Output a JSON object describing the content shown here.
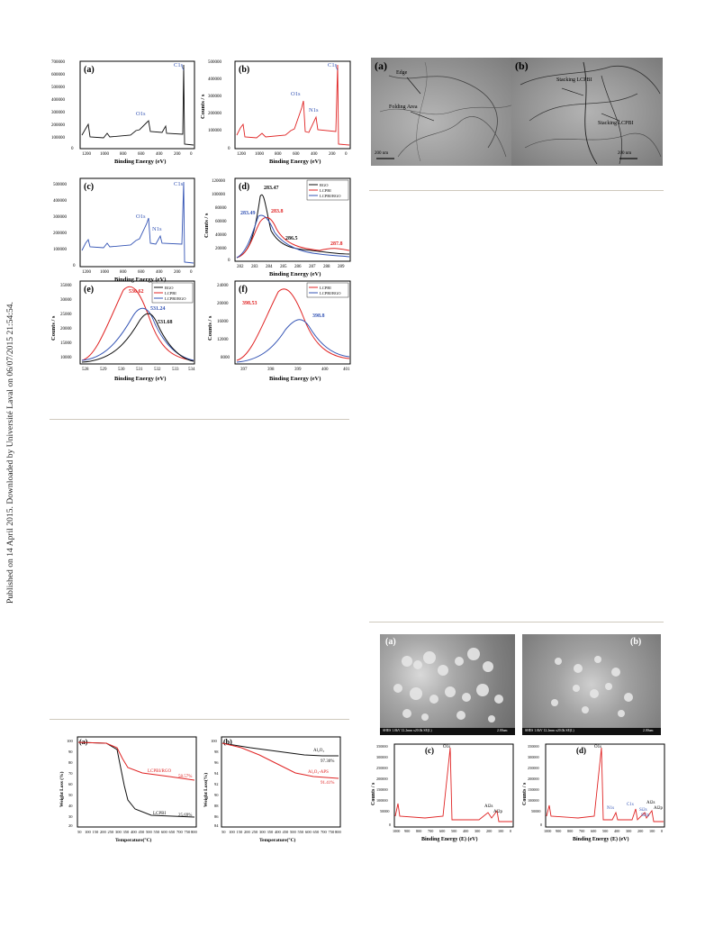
{
  "side_note": "Published on 14 April 2015. Downloaded by Université Laval on 06/07/2015 21:54:54.",
  "xps": {
    "xlabel": "Binding Energy (eV)",
    "ylabel": "Counts / s",
    "panels": {
      "a": {
        "label": "(a)",
        "peaks": [
          "C1s",
          "O1s"
        ],
        "yticks": [
          "700000",
          "600000",
          "500000",
          "400000",
          "300000",
          "200000",
          "100000",
          "0"
        ],
        "xticks": [
          "1200",
          "1000",
          "800",
          "600",
          "400",
          "200",
          "0"
        ]
      },
      "b": {
        "label": "(b)",
        "peaks": [
          "C1s",
          "O1s",
          "N1s"
        ],
        "yticks": [
          "500000",
          "400000",
          "300000",
          "200000",
          "100000",
          "0"
        ],
        "xticks": [
          "1200",
          "1000",
          "800",
          "600",
          "400",
          "200",
          "0"
        ]
      },
      "c": {
        "label": "(c)",
        "peaks": [
          "C1s",
          "O1s",
          "N1s"
        ],
        "yticks": [
          "500000",
          "400000",
          "300000",
          "200000",
          "100000",
          "0"
        ],
        "xticks": [
          "1200",
          "1000",
          "800",
          "600",
          "400",
          "200",
          "0"
        ]
      },
      "d": {
        "label": "(d)",
        "legend": [
          "RGO",
          "LCPBI",
          "LCPBI/RGO"
        ],
        "annotations": [
          "283.47",
          "283.49",
          "283.8",
          "286.5",
          "287.8"
        ],
        "yticks": [
          "120000",
          "100000",
          "80000",
          "60000",
          "40000",
          "20000",
          "0"
        ],
        "xticks": [
          "282",
          "283",
          "284",
          "285",
          "286",
          "287",
          "288",
          "289"
        ]
      },
      "e": {
        "label": "(e)",
        "legend": [
          "RGO",
          "LCPBI",
          "LCPBI/RGO"
        ],
        "annotations": [
          "530.62",
          "531.24",
          "531.68"
        ],
        "yticks": [
          "35000",
          "30000",
          "25000",
          "20000",
          "15000",
          "10000"
        ],
        "xticks": [
          "528",
          "529",
          "530",
          "531",
          "532",
          "533",
          "534"
        ]
      },
      "f": {
        "label": "(f)",
        "legend": [
          "LCPBI",
          "LCPBI/RGO"
        ],
        "annotations": [
          "398.53",
          "398.8"
        ],
        "yticks": [
          "24000",
          "20000",
          "16000",
          "12000",
          "8000"
        ],
        "xticks": [
          "397",
          "398",
          "399",
          "400",
          "401"
        ]
      }
    }
  },
  "tem": {
    "a": {
      "label": "(a)",
      "notes": [
        "Edge",
        "Folding Area"
      ],
      "scale": "200 nm"
    },
    "b": {
      "label": "(b)",
      "notes": [
        "Stacking LCPBI",
        "Stacking LCPBI"
      ],
      "scale": "200 nm"
    }
  },
  "tga": {
    "xlabel": "Temperature(°C)",
    "xticks": [
      "50",
      "100",
      "150",
      "200",
      "250",
      "300",
      "350",
      "400",
      "450",
      "500",
      "550",
      "600",
      "650",
      "700",
      "750",
      "800"
    ],
    "a": {
      "label": "(a)",
      "ylabel": "Weight Loss (%)",
      "yticks": [
        "100",
        "90",
        "80",
        "70",
        "60",
        "50",
        "40",
        "30",
        "20"
      ],
      "series": [
        {
          "name": "LCPBI/RGO",
          "value": "58.57%"
        },
        {
          "name": "LCPBI",
          "value": "25.69%"
        }
      ]
    },
    "b": {
      "label": "(b)",
      "ylabel": "Weight Loss(%)",
      "yticks": [
        "100",
        "98",
        "96",
        "94",
        "92",
        "90",
        "88",
        "86",
        "84"
      ],
      "series": [
        {
          "name": "Al₂O₃",
          "value": "97.30%"
        },
        {
          "name": "Al₂O₃-APS",
          "value": "91.41%"
        }
      ]
    }
  },
  "sem": {
    "a": {
      "label": "(a)",
      "footer": "SHES 1.0kV 12.2mm x20.0k SE(L)",
      "scale": "2.00um"
    },
    "b": {
      "label": "(b)",
      "footer": "SHES 1.0kV 12.2mm x20.0k SE(L)",
      "scale": "2.00um"
    }
  },
  "eds": {
    "xlabel": "Binding Energy (E) (eV)",
    "ylabel": "Counts / s",
    "c": {
      "label": "(c)",
      "peaks": [
        "O1s",
        "Al2s",
        "Al2p"
      ],
      "yticks": [
        "350000",
        "300000",
        "250000",
        "200000",
        "150000",
        "100000",
        "50000",
        "0"
      ],
      "xticks": [
        "1000",
        "900",
        "800",
        "700",
        "600",
        "500",
        "400",
        "300",
        "200",
        "100",
        "0"
      ]
    },
    "d": {
      "label": "(d)",
      "peaks": [
        "O1s",
        "N1s",
        "C1s",
        "Al2s",
        "Si2s",
        "Si2p",
        "Al2p"
      ],
      "yticks": [
        "350000",
        "300000",
        "250000",
        "200000",
        "150000",
        "100000",
        "50000",
        "0"
      ],
      "xticks": [
        "1000",
        "900",
        "800",
        "700",
        "600",
        "500",
        "400",
        "300",
        "200",
        "100",
        "0"
      ]
    }
  },
  "colors": {
    "black": "#111111",
    "red": "#e02424",
    "blue": "#3555b5",
    "rule": "#cfc9bd"
  }
}
